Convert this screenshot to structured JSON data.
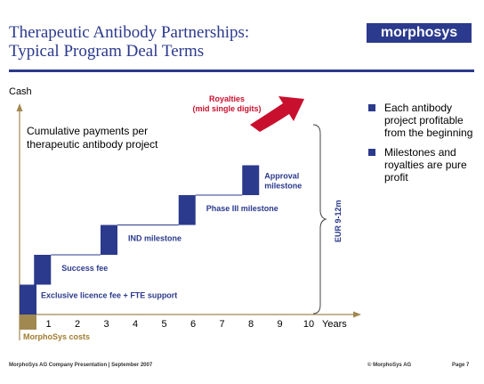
{
  "header": {
    "title_line1": "Therapeutic Antibody Partnerships:",
    "title_line2": "Typical Program Deal Terms",
    "logo_text": "morphosys"
  },
  "diagram": {
    "y_axis_label": "Cash",
    "x_axis_label": "Years",
    "x_ticks": [
      "1",
      "2",
      "3",
      "4",
      "5",
      "6",
      "7",
      "8",
      "9",
      "10"
    ],
    "subtitle_line1": "Cumulative payments per",
    "subtitle_line2": "therapeutic antibody project",
    "steps": [
      {
        "label": "Exclusive licence fee + FTE support",
        "start_year": 0,
        "end_year": 0.5,
        "level": 1
      },
      {
        "label": "Success fee",
        "start_year": 0.5,
        "end_year": 2.8,
        "level": 2
      },
      {
        "label": "IND milestone",
        "start_year": 2.8,
        "end_year": 5.5,
        "level": 3
      },
      {
        "label": "Phase III milestone",
        "start_year": 5.5,
        "end_year": 7.7,
        "level": 4
      },
      {
        "label": "Approval milestone",
        "start_year": 7.7,
        "end_year": 8.3,
        "level": 5
      }
    ],
    "royalties_line1": "Royalties",
    "royalties_line2": "(mid single digits)",
    "eur_label": "EUR 9-12m",
    "costs_label": "MorphoSys costs",
    "colors": {
      "steps": "#2b3a8c",
      "royalties": "#c8102e",
      "costs": "#a08850",
      "costs_text": "#a07c2e"
    }
  },
  "bullets": [
    "Each antibody project profitable from the beginning",
    "Milestones and royalties are pure profit"
  ],
  "footer": {
    "left": "MorphoSys AG Company Presentation  |  September 2007",
    "center": "© MorphoSys AG",
    "right": "Page 7"
  }
}
